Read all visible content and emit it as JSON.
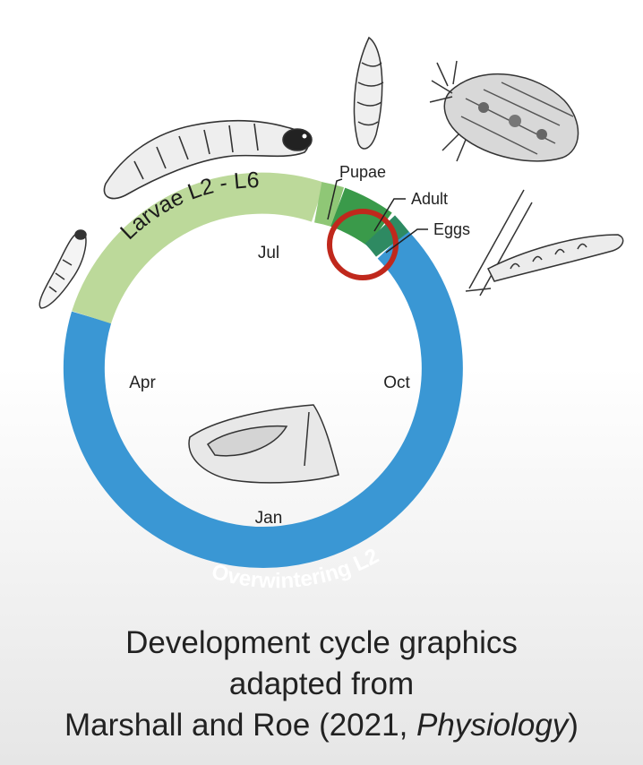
{
  "diagram": {
    "phases": [
      {
        "name": "Larvae L2 - L6",
        "color": "#bcd99a"
      },
      {
        "name": "Pupae",
        "color": "#8fc776"
      },
      {
        "name": "Adult",
        "color": "#3a9a4a"
      },
      {
        "name": "Eggs",
        "color": "#2e8a62"
      },
      {
        "name": "Overwintering L2",
        "color": "#3a97d4"
      }
    ],
    "months": [
      "Jul",
      "Oct",
      "Jan",
      "Apr"
    ],
    "highlight_color": "#c0281c"
  },
  "caption": {
    "line1": "Development cycle graphics",
    "line2": "adapted from",
    "line3_prefix": "Marshall and Roe (2021, ",
    "line3_italic": "Physiology",
    "line3_suffix": ")"
  }
}
